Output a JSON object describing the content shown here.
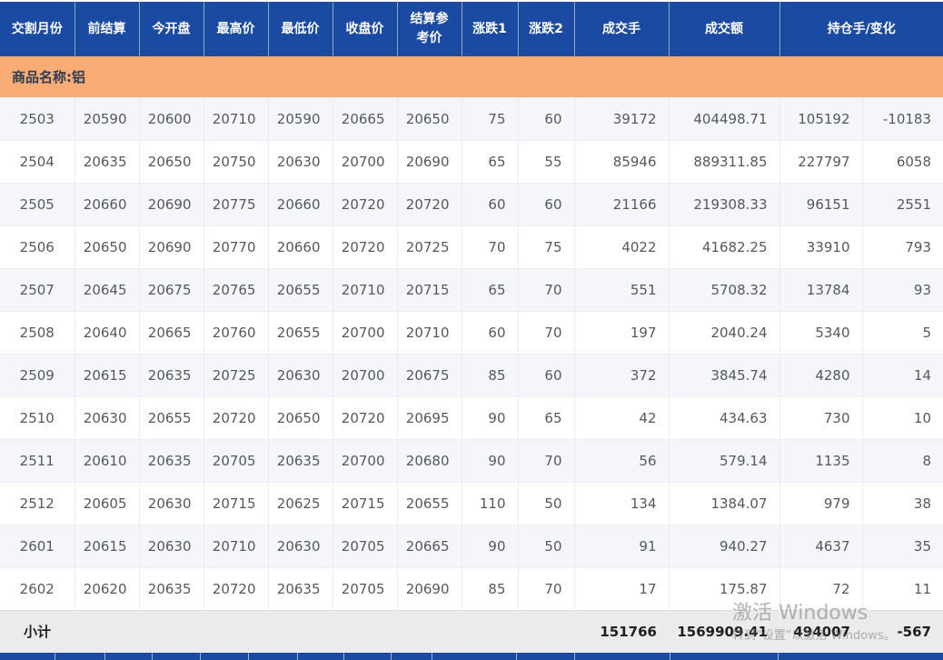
{
  "table": {
    "headers": [
      "交割月份",
      "前结算",
      "今开盘",
      "最高价",
      "最低价",
      "收盘价",
      "结算参考价",
      "涨跌1",
      "涨跌2",
      "成交手",
      "成交额",
      "持仓手/变化"
    ],
    "group_label": "商品名称:铝",
    "column_keys": [
      "delivery-month",
      "prev-settlement",
      "open",
      "high",
      "low",
      "close",
      "settlement-ref",
      "change1",
      "change2",
      "volume",
      "turnover",
      "open-interest",
      "oi-change"
    ],
    "rows": [
      [
        "2503",
        "20590",
        "20600",
        "20710",
        "20590",
        "20665",
        "20650",
        "75",
        "60",
        "39172",
        "404498.71",
        "105192",
        "-10183"
      ],
      [
        "2504",
        "20635",
        "20650",
        "20750",
        "20630",
        "20700",
        "20690",
        "65",
        "55",
        "85946",
        "889311.85",
        "227797",
        "6058"
      ],
      [
        "2505",
        "20660",
        "20690",
        "20775",
        "20660",
        "20720",
        "20720",
        "60",
        "60",
        "21166",
        "219308.33",
        "96151",
        "2551"
      ],
      [
        "2506",
        "20650",
        "20690",
        "20770",
        "20660",
        "20720",
        "20725",
        "70",
        "75",
        "4022",
        "41682.25",
        "33910",
        "793"
      ],
      [
        "2507",
        "20645",
        "20675",
        "20765",
        "20655",
        "20710",
        "20715",
        "65",
        "70",
        "551",
        "5708.32",
        "13784",
        "93"
      ],
      [
        "2508",
        "20640",
        "20665",
        "20760",
        "20655",
        "20700",
        "20710",
        "60",
        "70",
        "197",
        "2040.24",
        "5340",
        "5"
      ],
      [
        "2509",
        "20615",
        "20635",
        "20725",
        "20630",
        "20700",
        "20675",
        "85",
        "60",
        "372",
        "3845.74",
        "4280",
        "14"
      ],
      [
        "2510",
        "20630",
        "20655",
        "20720",
        "20650",
        "20720",
        "20695",
        "90",
        "65",
        "42",
        "434.63",
        "730",
        "10"
      ],
      [
        "2511",
        "20610",
        "20635",
        "20705",
        "20635",
        "20700",
        "20680",
        "90",
        "70",
        "56",
        "579.14",
        "1135",
        "8"
      ],
      [
        "2512",
        "20605",
        "20630",
        "20715",
        "20625",
        "20715",
        "20655",
        "110",
        "50",
        "134",
        "1384.07",
        "979",
        "38"
      ],
      [
        "2601",
        "20615",
        "20630",
        "20710",
        "20630",
        "20705",
        "20665",
        "90",
        "50",
        "91",
        "940.27",
        "4637",
        "35"
      ],
      [
        "2602",
        "20620",
        "20635",
        "20720",
        "20635",
        "20705",
        "20690",
        "85",
        "70",
        "17",
        "175.87",
        "72",
        "11"
      ]
    ],
    "subtotal": {
      "label": "小计",
      "volume": "151766",
      "turnover": "1569909.41",
      "open_interest": "494007",
      "oi_change": "-567"
    }
  },
  "watermark": {
    "line1": "激活 Windows",
    "line2": "转到“设置”以激活 Windows。"
  },
  "colors": {
    "header_blue": "#1b4aa2",
    "group_orange": "#f9ad74",
    "row_alt": "#f4f6fa",
    "subtotal_gray": "#ebebeb"
  }
}
